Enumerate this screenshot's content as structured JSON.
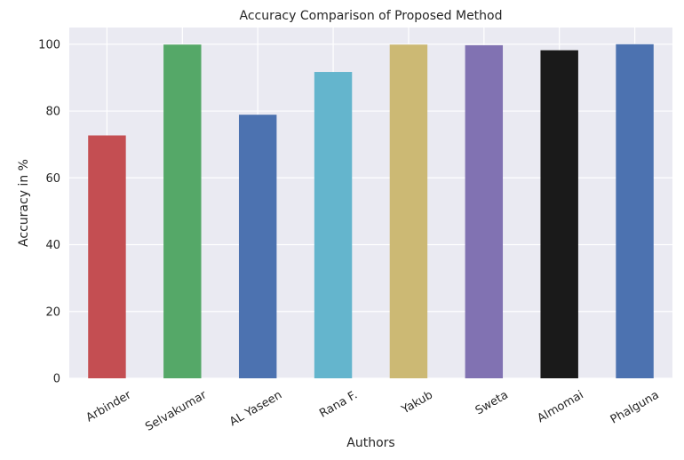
{
  "chart_data": {
    "type": "bar",
    "title": "Accuracy Comparison of Proposed Method",
    "xlabel": "Authors",
    "ylabel": "Accuracy in %",
    "categories": [
      "Arbinder",
      "Selvakumar",
      "AL Yaseen",
      "Rana F.",
      "Yakub",
      "Sweta",
      "Almomai",
      "Phalguna"
    ],
    "values": [
      72.7,
      99.9,
      78.9,
      91.7,
      99.9,
      99.7,
      98.2,
      100.0
    ],
    "colors": [
      "#c44e52",
      "#55a868",
      "#4c72b0",
      "#64b5cd",
      "#ccb974",
      "#8172b2",
      "#1a1a1a",
      "#4c72b0"
    ],
    "ylim": [
      0,
      105
    ],
    "yticks": [
      0,
      20,
      40,
      60,
      80,
      100
    ],
    "grid": true,
    "background": "#eaeaf2"
  }
}
